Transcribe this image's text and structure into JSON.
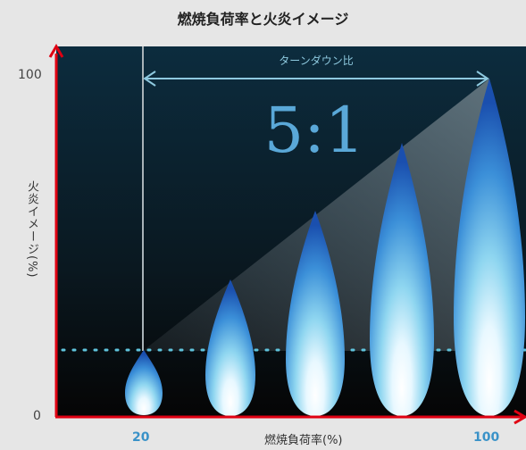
{
  "title": "燃焼負荷率と火炎イメージ",
  "y_axis": {
    "label": "火炎イメージ(%)",
    "tick_top": "100",
    "tick_bottom": "0"
  },
  "x_axis": {
    "label": "燃焼負荷率(%)",
    "tick_left": "20",
    "tick_right": "100"
  },
  "turndown": {
    "label": "ターンダウン比",
    "ratio": "5:1"
  },
  "colors": {
    "axis": "#e00012",
    "background_top": "#0c2c3e",
    "background_bottom": "#050505",
    "flame_outer": "#1f5fbd",
    "flame_core": "#f2fbff",
    "accent_text": "#3a92c8",
    "guide": "#7ec4d8"
  },
  "flames": [
    {
      "load": 20
    },
    {
      "load": 40
    },
    {
      "load": 60
    },
    {
      "load": 80
    },
    {
      "load": 100
    }
  ]
}
